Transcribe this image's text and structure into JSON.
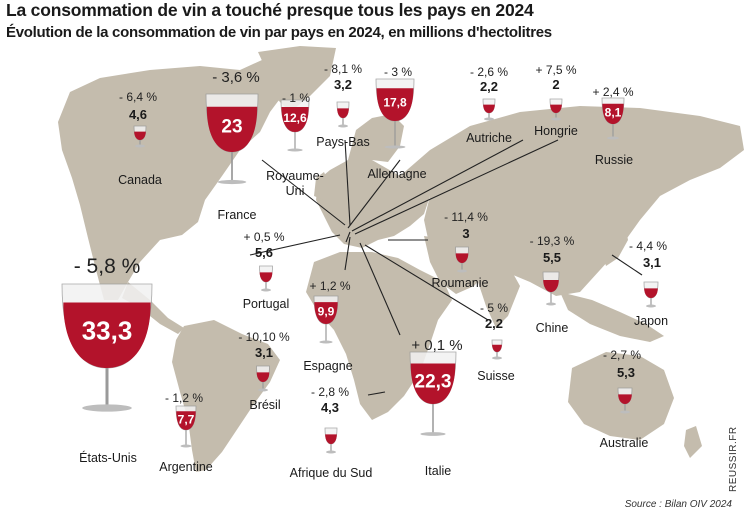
{
  "title": "La consommation de vin a touché presque tous les pays en 2024",
  "subtitle": "Évolution de la consommation de vin par pays en 2024, en millions d'hectolitres",
  "source": "Source : Bilan OIV 2024",
  "credit": "REUSSIR.FR",
  "colors": {
    "wine": "#b3132b",
    "land": "#c4bcad",
    "ocean": "#ffffff"
  },
  "countries": [
    {
      "name": "Canada",
      "change": "- 6,4 %",
      "value": "4,6",
      "volume": 4.6
    },
    {
      "name": "France",
      "change": "- 3,6 %",
      "value": "23",
      "volume": 23
    },
    {
      "name": "Royaume-Uni",
      "name_lines": [
        "Royaume-",
        "Uni"
      ],
      "change": "- 1 %",
      "value": "12,6",
      "volume": 12.6
    },
    {
      "name": "Pays-Bas",
      "change": "- 8,1 %",
      "value": "3,2",
      "volume": 3.2
    },
    {
      "name": "Allemagne",
      "change": "- 3 %",
      "value": "17,8",
      "volume": 17.8
    },
    {
      "name": "Autriche",
      "change": "- 2,6 %",
      "value": "2,2",
      "volume": 2.2
    },
    {
      "name": "Hongrie",
      "change": "+ 7,5 %",
      "value": "2",
      "volume": 2
    },
    {
      "name": "Russie",
      "change": "+ 2,4 %",
      "value": "8,1",
      "volume": 8.1
    },
    {
      "name": "Roumanie",
      "change": "- 11,4 %",
      "value": "3",
      "volume": 3
    },
    {
      "name": "Portugal",
      "change": "+ 0,5 %",
      "value": "5,6",
      "volume": 5.6
    },
    {
      "name": "Espagne",
      "change": "+ 1,2 %",
      "value": "9,9",
      "volume": 9.9
    },
    {
      "name": "Chine",
      "change": "- 19,3 %",
      "value": "5,5",
      "volume": 5.5
    },
    {
      "name": "Japon",
      "change": "- 4,4 %",
      "value": "3,1",
      "volume": 3.1
    },
    {
      "name": "Suisse",
      "change": "- 5 %",
      "value": "2,2",
      "volume": 2.2
    },
    {
      "name": "Italie",
      "change": "+ 0,1 %",
      "value": "22,3",
      "volume": 22.3
    },
    {
      "name": "Afrique du Sud",
      "change": "- 2,8 %",
      "value": "4,3",
      "volume": 4.3
    },
    {
      "name": "Brésil",
      "change": "- 10,10 %",
      "value": "3,1",
      "volume": 3.1
    },
    {
      "name": "Argentine",
      "change": "- 1,2 %",
      "value": "7,7",
      "volume": 7.7
    },
    {
      "name": "États-Unis",
      "change": "- 5,8 %",
      "value": "33,3",
      "volume": 33.3
    },
    {
      "name": "Australie",
      "change": "- 2,7 %",
      "value": "5,3",
      "volume": 5.3
    }
  ]
}
